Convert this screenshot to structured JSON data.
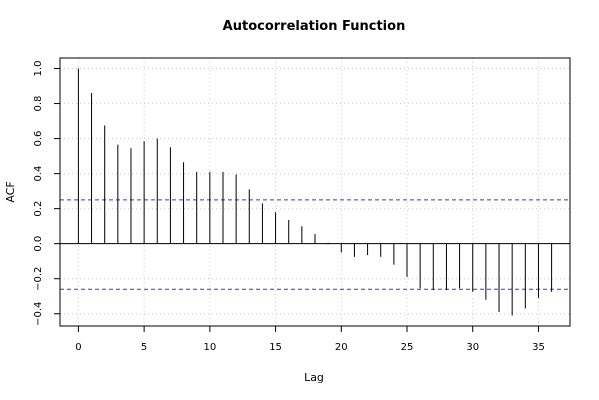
{
  "chart_data": {
    "type": "bar",
    "title": "Autocorrelation Function",
    "xlabel": "Lag",
    "ylabel": "ACF",
    "xlim": [
      -1.4,
      37.4
    ],
    "ylim": [
      -0.47,
      1.06
    ],
    "xticks": [
      0,
      5,
      10,
      15,
      20,
      25,
      30,
      35
    ],
    "yticks": [
      -0.4,
      -0.2,
      0.0,
      0.2,
      0.4,
      0.6,
      0.8,
      1.0
    ],
    "ytick_labels": [
      "−0.4",
      "−0.2",
      "0.0",
      "0.2",
      "0.4",
      "0.6",
      "0.8",
      "1.0"
    ],
    "grid": true,
    "lags": [
      0,
      1,
      2,
      3,
      4,
      5,
      6,
      7,
      8,
      9,
      10,
      11,
      12,
      13,
      14,
      15,
      16,
      17,
      18,
      19,
      20,
      21,
      22,
      23,
      24,
      25,
      26,
      27,
      28,
      29,
      30,
      31,
      32,
      33,
      34,
      35,
      36
    ],
    "values": [
      1.0,
      0.86,
      0.675,
      0.565,
      0.545,
      0.585,
      0.6,
      0.55,
      0.465,
      0.41,
      0.41,
      0.41,
      0.395,
      0.31,
      0.23,
      0.18,
      0.135,
      0.1,
      0.055,
      0.005,
      -0.05,
      -0.075,
      -0.065,
      -0.075,
      -0.12,
      -0.19,
      -0.255,
      -0.265,
      -0.265,
      -0.255,
      -0.275,
      -0.32,
      -0.39,
      -0.41,
      -0.37,
      -0.31,
      -0.275
    ],
    "confidence_bounds": [
      0.25,
      -0.26
    ],
    "colors": {
      "bars": "#000000",
      "confidence": "#3a3ac8",
      "grid": "#cccccc"
    }
  }
}
